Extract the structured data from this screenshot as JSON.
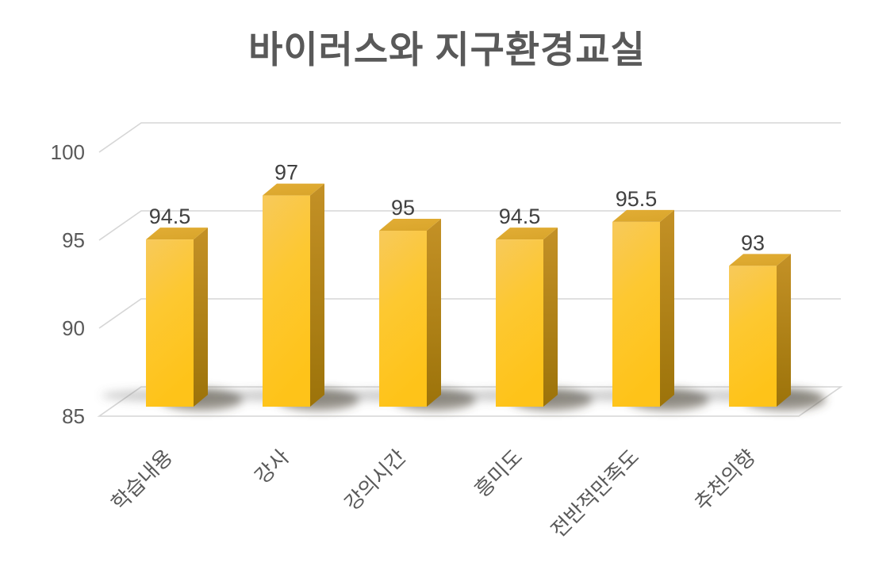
{
  "chart_data": {
    "type": "bar",
    "style": "3d-column",
    "title": "바이러스와 지구환경교실",
    "categories": [
      "학습내용",
      "강사",
      "강의시간",
      "흥미도",
      "전반적만족도",
      "추천의향"
    ],
    "values": [
      94.5,
      97,
      95,
      94.5,
      95.5,
      93
    ],
    "data_labels": [
      "94.5",
      "97",
      "95",
      "94.5",
      "95.5",
      "93"
    ],
    "y_ticks": [
      100,
      95,
      90,
      85
    ],
    "ylim": [
      85,
      100
    ],
    "xlabel": "",
    "ylabel": "",
    "grid": true,
    "legend": "none",
    "colors": {
      "bar_front_top": "#F7C95B",
      "bar_front_mid": "#FDC831",
      "bar_front_bottom": "#FEC319",
      "bar_side_top": "#C49126",
      "bar_side_bottom": "#9C730A",
      "bar_top_face": "#DAA62C",
      "gridline": "#D6D6D6",
      "axis_text": "#595959",
      "data_label_text": "#404040",
      "title_text": "#595959",
      "shadow": "#4A4636"
    }
  }
}
